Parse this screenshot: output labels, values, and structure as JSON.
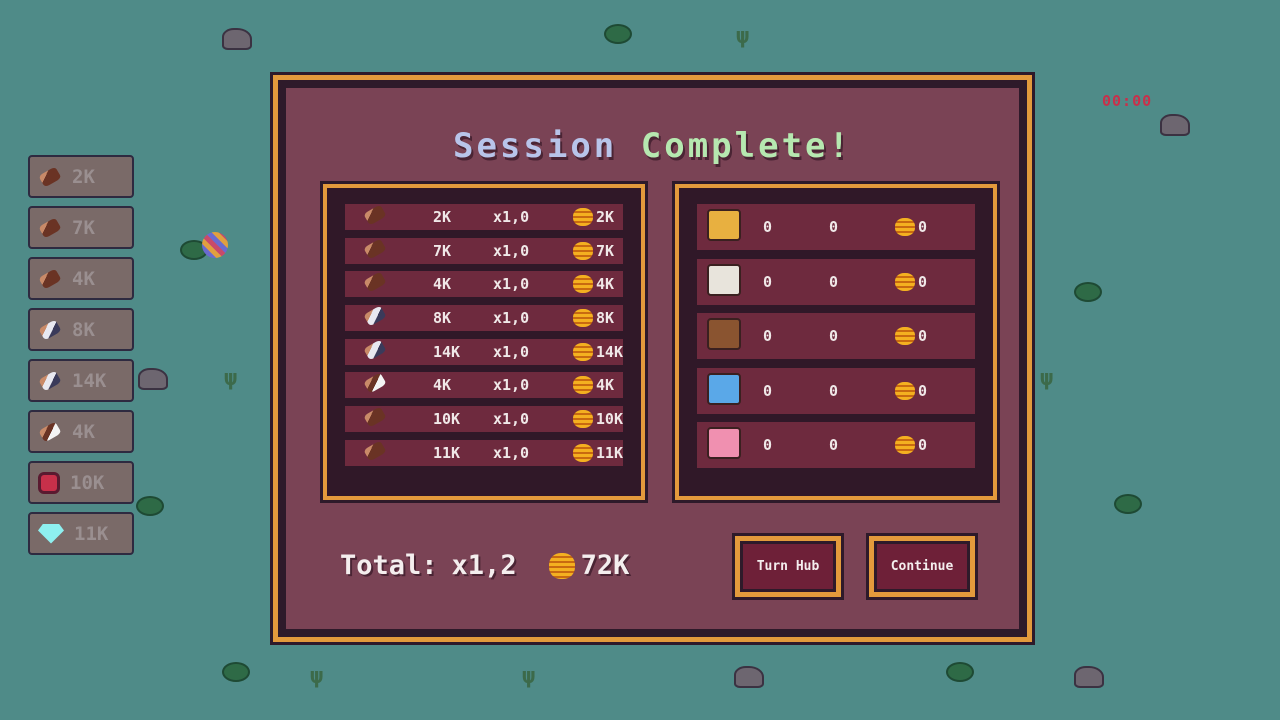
{
  "hud": {
    "timer": "00:00"
  },
  "inventory": [
    {
      "icon": "log-icon",
      "value": "2K"
    },
    {
      "icon": "sprout-log-icon",
      "value": "7K"
    },
    {
      "icon": "flower-log-icon",
      "value": "4K"
    },
    {
      "icon": "birch-log-icon",
      "value": "8K"
    },
    {
      "icon": "birch-sprout-log-icon",
      "value": "14K"
    },
    {
      "icon": "snowy-log-icon",
      "value": "4K"
    },
    {
      "icon": "ruby-icon",
      "value": "10K"
    },
    {
      "icon": "diamond-icon",
      "value": "11K"
    }
  ],
  "dialog": {
    "title_part1": "Session",
    "title_part2": "Complete!",
    "resources": [
      {
        "icon": "log-icon",
        "amount": "2K",
        "multiplier": "x1,0",
        "coins": "2K"
      },
      {
        "icon": "sprout-log-icon",
        "amount": "7K",
        "multiplier": "x1,0",
        "coins": "7K"
      },
      {
        "icon": "flower-log-icon",
        "amount": "4K",
        "multiplier": "x1,0",
        "coins": "4K"
      },
      {
        "icon": "birch-log-icon",
        "amount": "8K",
        "multiplier": "x1,0",
        "coins": "8K"
      },
      {
        "icon": "birch-sprout-log-icon",
        "amount": "14K",
        "multiplier": "x1,0",
        "coins": "14K"
      },
      {
        "icon": "snowy-log-icon",
        "amount": "4K",
        "multiplier": "x1,0",
        "coins": "4K"
      },
      {
        "icon": "log-icon",
        "amount": "10K",
        "multiplier": "x1,0",
        "coins": "10K"
      },
      {
        "icon": "log-icon",
        "amount": "11K",
        "multiplier": "x1,0",
        "coins": "11K"
      }
    ],
    "chests": [
      {
        "icon": "gold-chest-icon",
        "color": "#e8b040",
        "a": "0",
        "b": "0",
        "coins": "0"
      },
      {
        "icon": "white-chest-icon",
        "color": "#e8e4dc",
        "a": "0",
        "b": "0",
        "coins": "0"
      },
      {
        "icon": "horned-chest-icon",
        "color": "#8a5430",
        "a": "0",
        "b": "0",
        "coins": "0"
      },
      {
        "icon": "ice-chest-icon",
        "color": "#5aa8e8",
        "a": "0",
        "b": "0",
        "coins": "0"
      },
      {
        "icon": "pig-chest-icon",
        "color": "#f090b0",
        "a": "0",
        "b": "0",
        "coins": "0"
      }
    ],
    "total_label": "Total:",
    "total_multiplier": "x1,2",
    "total_coins": "72K",
    "turn_hub_label": "Turn Hub",
    "continue_label": "Continue"
  }
}
